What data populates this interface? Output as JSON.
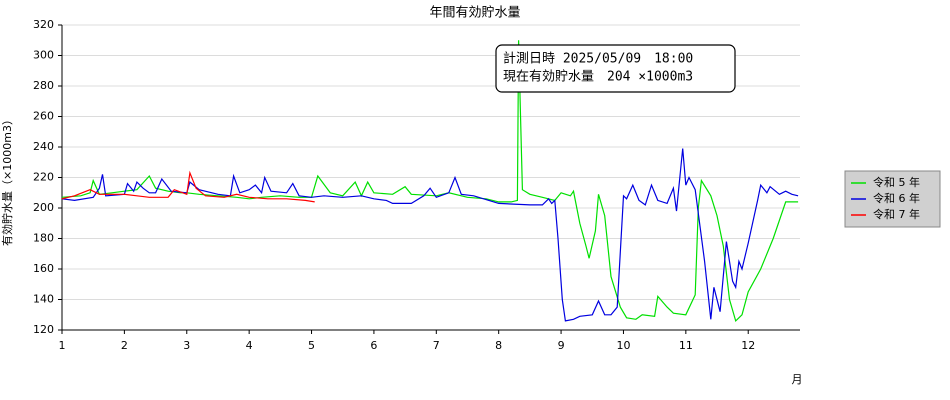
{
  "chart_data": {
    "type": "line",
    "title": "年間有効貯水量",
    "y_label": "有効貯水量（×1000m3）",
    "x_label": "月",
    "annotations": [
      "計測日時 2025/05/09　18:00",
      "現在有効貯水量　204 ×1000m3"
    ],
    "xlim": [
      1,
      12.83
    ],
    "xticks": [
      1,
      2,
      3,
      4,
      5,
      6,
      7,
      8,
      9,
      10,
      11,
      12
    ],
    "ylim": [
      120,
      320
    ],
    "yticks": [
      120,
      140,
      160,
      180,
      200,
      220,
      240,
      260,
      280,
      300,
      320
    ],
    "grid": true,
    "legend": "right",
    "series": [
      {
        "name": "令和 5 年",
        "color": "#00e000",
        "x": [
          1,
          1.3,
          1.45,
          1.5,
          1.6,
          1.8,
          2,
          2.2,
          2.4,
          2.5,
          2.7,
          2.9,
          3,
          3.2,
          3.5,
          3.8,
          4,
          4.2,
          4.5,
          4.8,
          5,
          5.1,
          5.3,
          5.5,
          5.7,
          5.8,
          5.9,
          6,
          6.3,
          6.5,
          6.6,
          7,
          7.2,
          7.5,
          7.8,
          8,
          8.2,
          8.3,
          8.32,
          8.38,
          8.5,
          8.7,
          8.9,
          9,
          9.15,
          9.2,
          9.3,
          9.4,
          9.45,
          9.55,
          9.6,
          9.7,
          9.8,
          9.95,
          10.05,
          10.2,
          10.3,
          10.5,
          10.55,
          10.7,
          10.8,
          11,
          11.15,
          11.2,
          11.25,
          11.4,
          11.5,
          11.6,
          11.7,
          11.8,
          11.9,
          12,
          12.2,
          12.4,
          12.6,
          12.8
        ],
        "values": [
          207,
          208,
          210,
          218,
          209,
          210,
          211,
          212,
          221,
          213,
          211,
          210,
          210,
          209,
          208,
          207,
          206,
          207,
          208,
          207,
          207,
          221,
          210,
          208,
          217,
          208,
          217,
          210,
          209,
          214,
          209,
          208,
          210,
          207,
          206,
          204,
          204,
          205,
          310,
          212,
          209,
          207,
          205,
          210,
          208,
          211,
          190,
          175,
          167,
          185,
          209,
          195,
          155,
          135,
          128,
          127,
          130,
          129,
          142,
          135,
          131,
          130,
          143,
          200,
          218,
          208,
          195,
          175,
          140,
          126,
          130,
          145,
          160,
          180,
          204,
          204
        ]
      },
      {
        "name": "令和 6 年",
        "color": "#0000e0",
        "x": [
          1,
          1.2,
          1.5,
          1.6,
          1.65,
          1.7,
          2,
          2.05,
          2.15,
          2.2,
          2.3,
          2.4,
          2.5,
          2.6,
          2.75,
          3,
          3.05,
          3.2,
          3.5,
          3.7,
          3.75,
          3.85,
          4,
          4.1,
          4.2,
          4.25,
          4.35,
          4.6,
          4.7,
          4.8,
          5,
          5.2,
          5.5,
          5.8,
          6,
          6.2,
          6.3,
          6.6,
          6.8,
          6.9,
          7,
          7.2,
          7.3,
          7.4,
          7.6,
          8,
          8.5,
          8.7,
          8.8,
          8.85,
          8.9,
          8.95,
          9.02,
          9.07,
          9.2,
          9.3,
          9.5,
          9.6,
          9.7,
          9.8,
          9.9,
          10,
          10.05,
          10.15,
          10.25,
          10.35,
          10.45,
          10.55,
          10.7,
          10.8,
          10.85,
          10.95,
          11,
          11.05,
          11.15,
          11.3,
          11.4,
          11.45,
          11.55,
          11.65,
          11.75,
          11.8,
          11.85,
          11.9,
          12,
          12.15,
          12.2,
          12.3,
          12.35,
          12.5,
          12.6,
          12.7,
          12.8
        ],
        "values": [
          206,
          205,
          207,
          213,
          222,
          208,
          209,
          216,
          211,
          217,
          213,
          210,
          210,
          219,
          211,
          210,
          217,
          212,
          209,
          208,
          221,
          210,
          212,
          215,
          210,
          220,
          211,
          210,
          216,
          208,
          207,
          208,
          207,
          208,
          206,
          205,
          203,
          203,
          208,
          213,
          207,
          210,
          220,
          209,
          208,
          203,
          202,
          202,
          206,
          203,
          205,
          180,
          140,
          126,
          127,
          129,
          130,
          139,
          130,
          130,
          135,
          208,
          206,
          215,
          205,
          202,
          215,
          205,
          203,
          213,
          198,
          239,
          215,
          220,
          212,
          165,
          127,
          148,
          132,
          178,
          152,
          148,
          165,
          160,
          177,
          205,
          215,
          210,
          214,
          209,
          211,
          209,
          208
        ]
      },
      {
        "name": "令和 7 年",
        "color": "#ff0000",
        "x": [
          1,
          1.2,
          1.45,
          1.6,
          2,
          2.2,
          2.4,
          2.7,
          2.8,
          3,
          3.05,
          3.15,
          3.3,
          3.6,
          3.8,
          4,
          4.3,
          4.6,
          4.9,
          5.05
        ],
        "values": [
          206,
          208,
          212,
          209,
          209,
          208,
          207,
          207,
          212,
          209,
          223,
          213,
          208,
          207,
          209,
          207,
          206,
          206,
          205,
          204
        ]
      }
    ]
  }
}
